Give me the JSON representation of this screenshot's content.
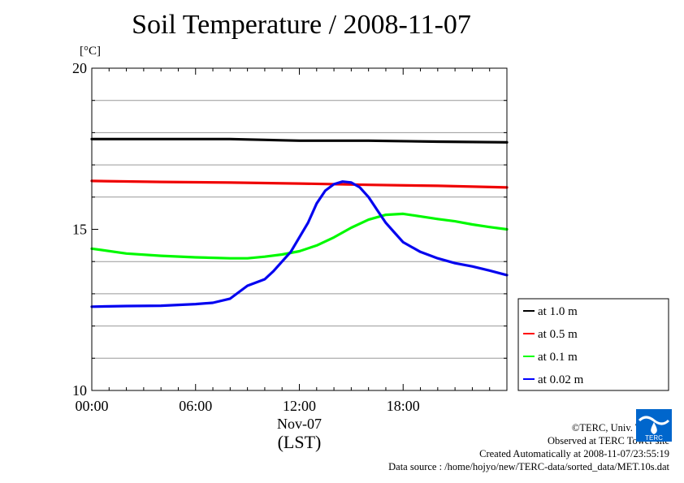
{
  "chart_data": {
    "type": "line",
    "title": "Soil Temperature / 2008-11-07",
    "ylabel": "[°C]",
    "ylim": [
      10,
      20
    ],
    "yticks": [
      {
        "value": 10,
        "label": "10"
      },
      {
        "value": 15,
        "label": "15"
      },
      {
        "value": 20,
        "label": "20"
      }
    ],
    "ygrid": [
      11,
      12,
      13,
      14,
      16,
      17,
      18,
      19
    ],
    "xlim": [
      0,
      24
    ],
    "xticks": [
      {
        "value": 0,
        "label": "00:00"
      },
      {
        "value": 6,
        "label": "06:00"
      },
      {
        "value": 12,
        "label": "12:00"
      },
      {
        "value": 18,
        "label": "18:00"
      }
    ],
    "xdate": "Nov-07",
    "xlabel": "(LST)",
    "legend_position": "right",
    "series": [
      {
        "name": "at 1.0 m",
        "color": "#000000",
        "x": [
          0,
          4,
          8,
          12,
          16,
          20,
          24
        ],
        "y": [
          17.8,
          17.8,
          17.8,
          17.75,
          17.75,
          17.72,
          17.7
        ]
      },
      {
        "name": "at 0.5 m",
        "color": "#ff0000",
        "x": [
          0,
          4,
          8,
          12,
          16,
          20,
          24
        ],
        "y": [
          16.5,
          16.47,
          16.45,
          16.42,
          16.38,
          16.35,
          16.3
        ]
      },
      {
        "name": "at 0.1 m",
        "color": "#00ff00",
        "x": [
          0,
          2,
          4,
          6,
          8,
          9,
          10,
          11,
          12,
          13,
          14,
          15,
          16,
          17,
          18,
          19,
          20,
          21,
          22,
          23,
          24
        ],
        "y": [
          14.4,
          14.25,
          14.18,
          14.13,
          14.1,
          14.1,
          14.15,
          14.22,
          14.32,
          14.5,
          14.75,
          15.05,
          15.3,
          15.45,
          15.48,
          15.4,
          15.32,
          15.25,
          15.15,
          15.07,
          15.0
        ]
      },
      {
        "name": "at 0.02 m",
        "color": "#0000ff",
        "x": [
          0,
          2,
          4,
          6,
          7,
          8,
          9,
          10,
          10.5,
          11,
          11.5,
          12,
          12.5,
          13,
          13.5,
          14,
          14.5,
          15,
          15.5,
          16,
          16.5,
          17,
          17.5,
          18,
          19,
          20,
          21,
          22,
          23,
          24
        ],
        "y": [
          12.6,
          12.62,
          12.63,
          12.68,
          12.72,
          12.85,
          13.25,
          13.45,
          13.7,
          14.0,
          14.3,
          14.75,
          15.2,
          15.8,
          16.2,
          16.4,
          16.48,
          16.45,
          16.3,
          16.0,
          15.6,
          15.2,
          14.9,
          14.6,
          14.3,
          14.1,
          13.95,
          13.85,
          13.72,
          13.58
        ]
      }
    ]
  },
  "credits": [
    "©TERC, Univ. Tsukuba",
    "Observed at TERC Tower site",
    "Created Automatically at 2008-11-07/23:55:19",
    "Data source : /home/hojyo/new/TERC-data/sorted_data/MET.10s.dat"
  ],
  "logo": {
    "text": "TERC",
    "color": "#0066cc"
  }
}
